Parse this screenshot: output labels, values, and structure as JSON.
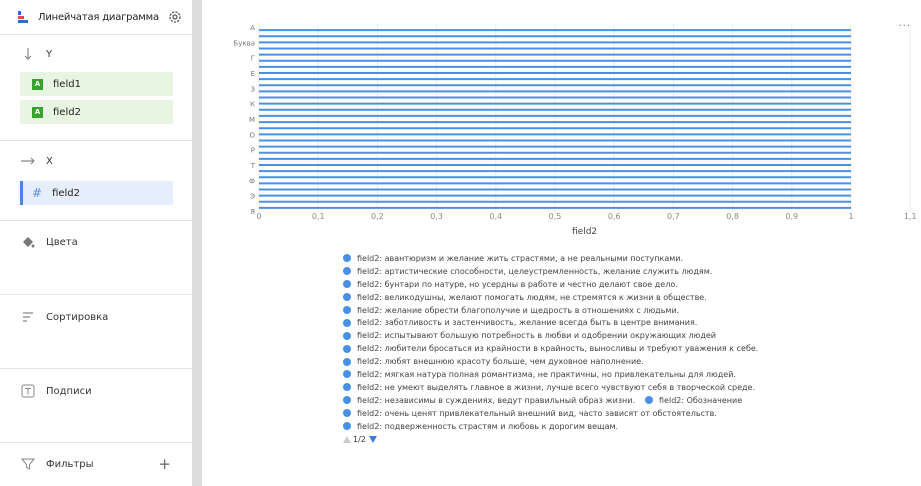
{
  "sidebar": {
    "title": "Линейчатая диаграмма",
    "y_label": "Y",
    "y_fields": [
      "field1",
      "field2"
    ],
    "x_label": "X",
    "x_field": "field2",
    "colors_label": "Цвета",
    "sort_label": "Сортировка",
    "labels_label": "Подписи",
    "filters_label": "Фильтры",
    "add_symbol": "+",
    "badge_text": "A",
    "hash_symbol": "#"
  },
  "toolbar": {
    "more": "..."
  },
  "chart_data": {
    "type": "bar",
    "orientation": "horizontal",
    "categories": [
      "А",
      "Буква",
      "Г",
      "Е",
      "З",
      "К",
      "М",
      "О",
      "Р",
      "Т",
      "Ф",
      "Э",
      "Я"
    ],
    "bar_count": 30,
    "bar_value": 1,
    "xlabel": "field2",
    "xlim": [
      0,
      1.1
    ],
    "xticks": [
      "0",
      "0,1",
      "0,2",
      "0,3",
      "0,4",
      "0,5",
      "0,6",
      "0,7",
      "0,8",
      "0,9",
      "1",
      "1,1"
    ],
    "series_color": "#4a90e2",
    "grid": "vertical"
  },
  "legend": {
    "items": [
      [
        "field2: авантюризм и желание жить страстями, а не реальными поступками."
      ],
      [
        "field2: артистические способности, целеустремленность, желание служить людям."
      ],
      [
        "field2: бунтари по натуре, но усердны в работе и честно делают свое дело."
      ],
      [
        "field2: великодушны, желают помогать людям, не стремятся к жизни в обществе."
      ],
      [
        "field2: желание обрести благополучие и щедрость в отношениях с людьми."
      ],
      [
        "field2: заботливость и застенчивость, желание всегда быть в центре внимания."
      ],
      [
        "field2: испытывают большую потребность в любви и одобрении окружающих людей"
      ],
      [
        "field2: любители бросаться из крайности в крайность, выносливы и требуют уважения к себе."
      ],
      [
        "field2: любят внешнюю красоту больше, чем духовное наполнение."
      ],
      [
        "field2: мягкая натура полная романтизма, не практичны, но привлекательны для людей."
      ],
      [
        "field2: не умеют выделять главное в жизни, лучше всего чувствуют себя в творческой среде."
      ],
      [
        "field2: независимы в суждениях, ведут правильный образ жизни.",
        "field2: Обозначение"
      ],
      [
        "field2: очень ценят привлекательный внешний вид, часто зависят от обстоятельств."
      ],
      [
        "field2: подверженность страстям и любовь к дорогим вещам."
      ]
    ],
    "page": "1/2"
  }
}
